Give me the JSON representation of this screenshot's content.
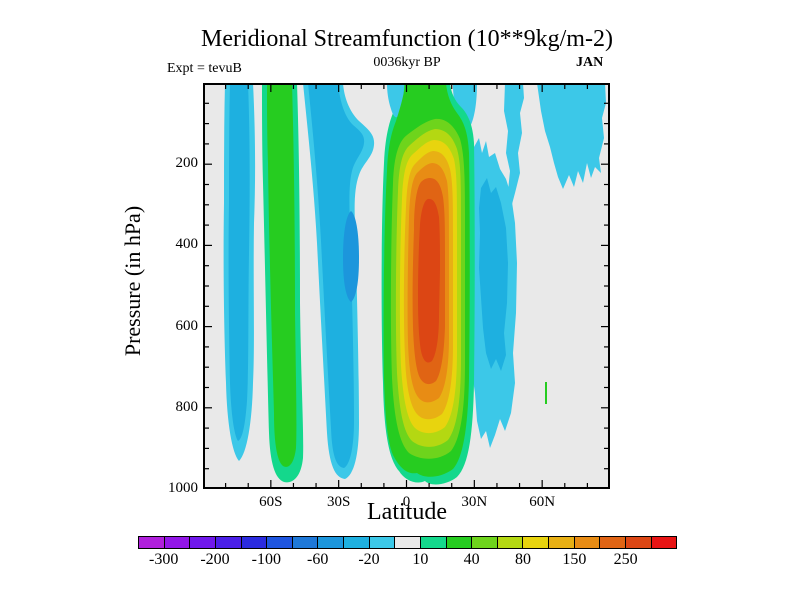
{
  "header": {
    "title": "Meridional Streamfunction (10**9kg/m-2)",
    "experiment": "Expt = tevuB",
    "time": "0036kyr BP",
    "month": "JAN"
  },
  "chart_data": {
    "type": "heatmap",
    "subtype": "filled-contour",
    "title": "Meridional Streamfunction (10**9kg/m-2)",
    "subtitle_left": "Expt = tevuB",
    "subtitle_center": "0036kyr BP",
    "subtitle_right": "JAN",
    "xlabel": "Latitude",
    "ylabel": "Pressure (in hPa)",
    "x_axis": {
      "min": -90,
      "max": 90,
      "minor_tick_interval": 10,
      "major_ticks": [
        {
          "value": -60,
          "label": "60S"
        },
        {
          "value": -30,
          "label": "30S"
        },
        {
          "value": 0,
          "label": "0"
        },
        {
          "value": 30,
          "label": "30N"
        },
        {
          "value": 60,
          "label": "60N"
        }
      ]
    },
    "y_axis": {
      "min": 0,
      "max": 1000,
      "direction": "increases-downward",
      "minor_tick_interval": 50,
      "major_ticks": [
        {
          "value": 200,
          "label": "200"
        },
        {
          "value": 400,
          "label": "400"
        },
        {
          "value": 600,
          "label": "600"
        },
        {
          "value": 800,
          "label": "800"
        },
        {
          "value": 1000,
          "label": "1000"
        }
      ]
    },
    "contour_boundaries": [
      -300,
      -250,
      -200,
      -150,
      -100,
      -80,
      -60,
      -40,
      -20,
      -10,
      10,
      20,
      40,
      60,
      80,
      100,
      150,
      200,
      250,
      300
    ],
    "colorbar": {
      "colors": [
        "#b01fdc",
        "#9316e8",
        "#7018ec",
        "#4b1fe8",
        "#2b2be0",
        "#1e55e0",
        "#1e78d8",
        "#1c96dc",
        "#1eb0e0",
        "#3cc8e8",
        "#e9e9e9",
        "#14d88c",
        "#26cc20",
        "#6ed41c",
        "#b4d812",
        "#e8d40e",
        "#e8b014",
        "#e88c14",
        "#e06414",
        "#dc4614",
        "#e81414"
      ],
      "labels": [
        {
          "text": "-300",
          "boundary": 1
        },
        {
          "text": "-200",
          "boundary": 3
        },
        {
          "text": "-100",
          "boundary": 5
        },
        {
          "text": "-60",
          "boundary": 7
        },
        {
          "text": "-20",
          "boundary": 9
        },
        {
          "text": "10",
          "boundary": 11
        },
        {
          "text": "40",
          "boundary": 13
        },
        {
          "text": "80",
          "boundary": 15
        },
        {
          "text": "150",
          "boundary": 17
        },
        {
          "text": "250",
          "boundary": 19
        }
      ]
    },
    "background_value_range": "-10..10",
    "features": [
      {
        "name": "sh-polar-negative-band",
        "lat_range": "80S-70S",
        "pressure_range": "top-900",
        "peak_value": -30
      },
      {
        "name": "sh-ferrel-positive-band",
        "lat_range": "65S-55S",
        "pressure_range": "top-1000",
        "peak_value": 30
      },
      {
        "name": "sh-subtropical-negative-band",
        "lat_range": "50S-35S",
        "pressure_range": "top-1000",
        "peak_value": -50
      },
      {
        "name": "hadley-cell-positive-core",
        "lat_range": "5S-25N",
        "pressure_range": "100-975",
        "peak_value": 230
      },
      {
        "name": "nh-midlat-negative-cell",
        "lat_range": "30N-50N",
        "pressure_range": "150-900",
        "peak_value": -50
      },
      {
        "name": "nh-highlat-negative-patches",
        "lat_range": "50N-85N",
        "pressure_range": "top-300",
        "peak_value": -30
      },
      {
        "name": "nh-small-positive-sliver",
        "lat_range": "60N",
        "pressure_range": "740-790",
        "peak_value": 15
      }
    ]
  }
}
